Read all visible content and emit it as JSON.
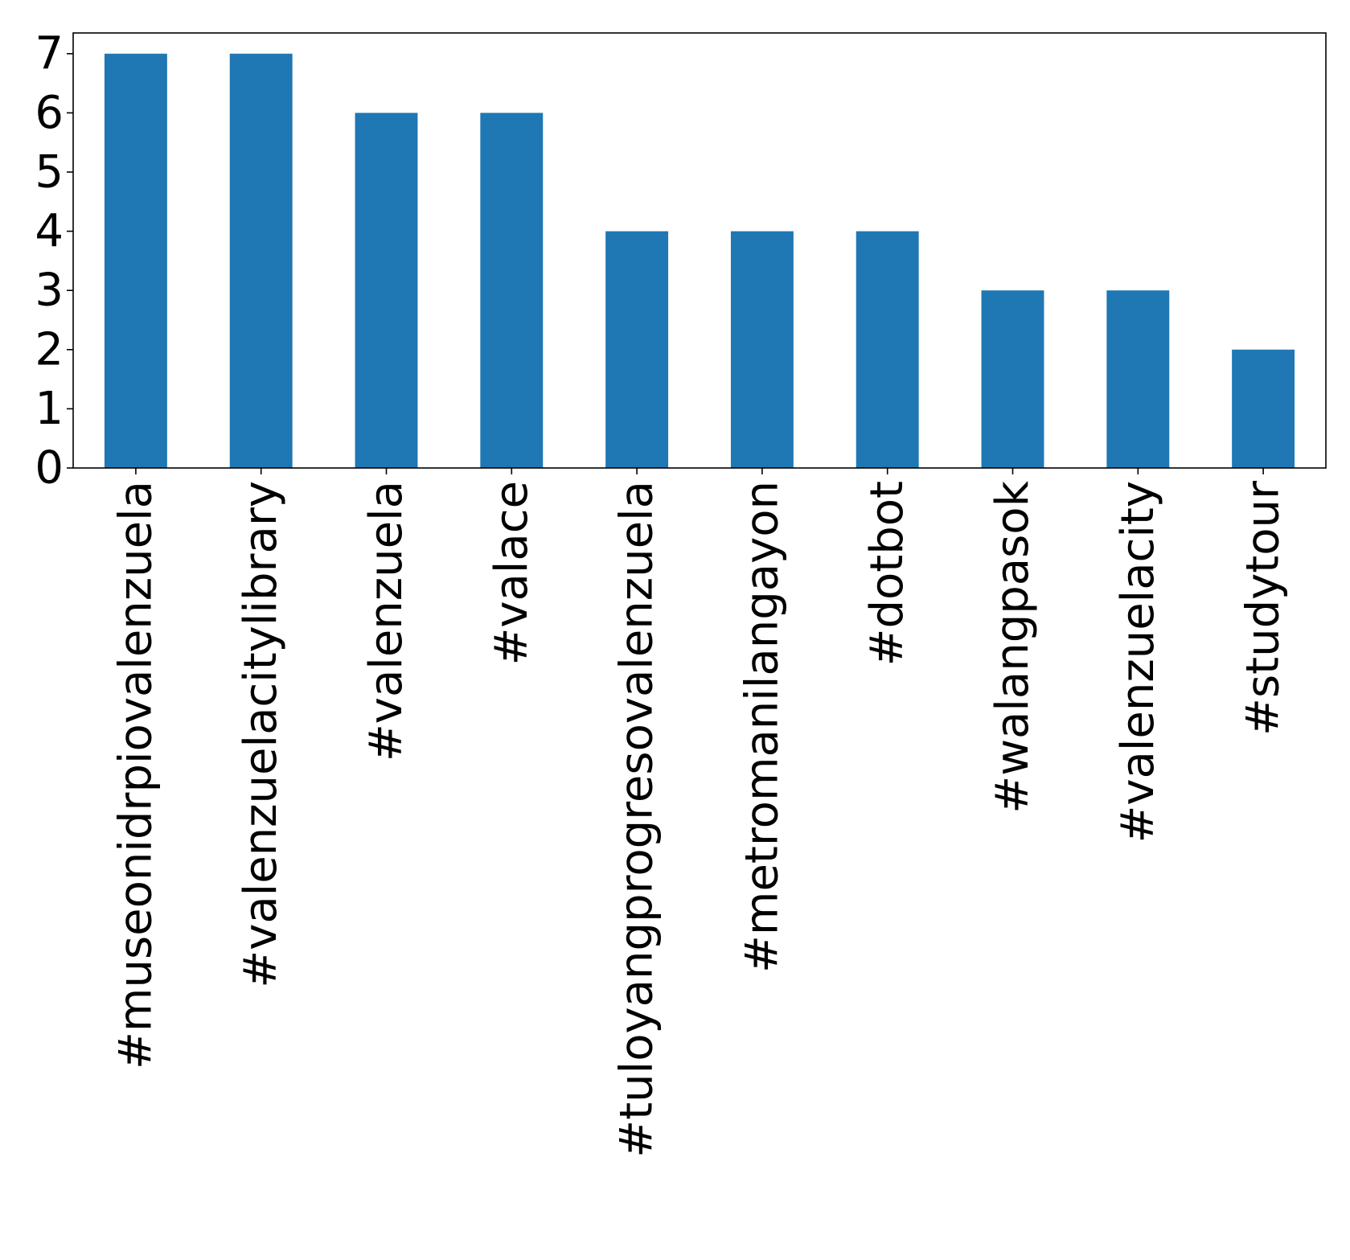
{
  "chart_data": {
    "type": "bar",
    "categories": [
      "#museonidrpiovalenzuela",
      "#valenzuelacitylibrary",
      "#valenzuela",
      "#valace",
      "#tuloyangprogresovalenzuela",
      "#metromanilangayon",
      "#dotbot",
      "#walangpasok",
      "#valenzuelacity",
      "#studytour"
    ],
    "values": [
      7,
      7,
      6,
      6,
      4,
      4,
      4,
      3,
      3,
      2
    ],
    "ylim": [
      0,
      7.35
    ],
    "yticks": [
      0,
      1,
      2,
      3,
      4,
      5,
      6,
      7
    ],
    "title": "",
    "xlabel": "",
    "ylabel": "",
    "grid": false,
    "bar_color": "#1f77b4",
    "axis_color": "#000000",
    "background": "#ffffff"
  }
}
